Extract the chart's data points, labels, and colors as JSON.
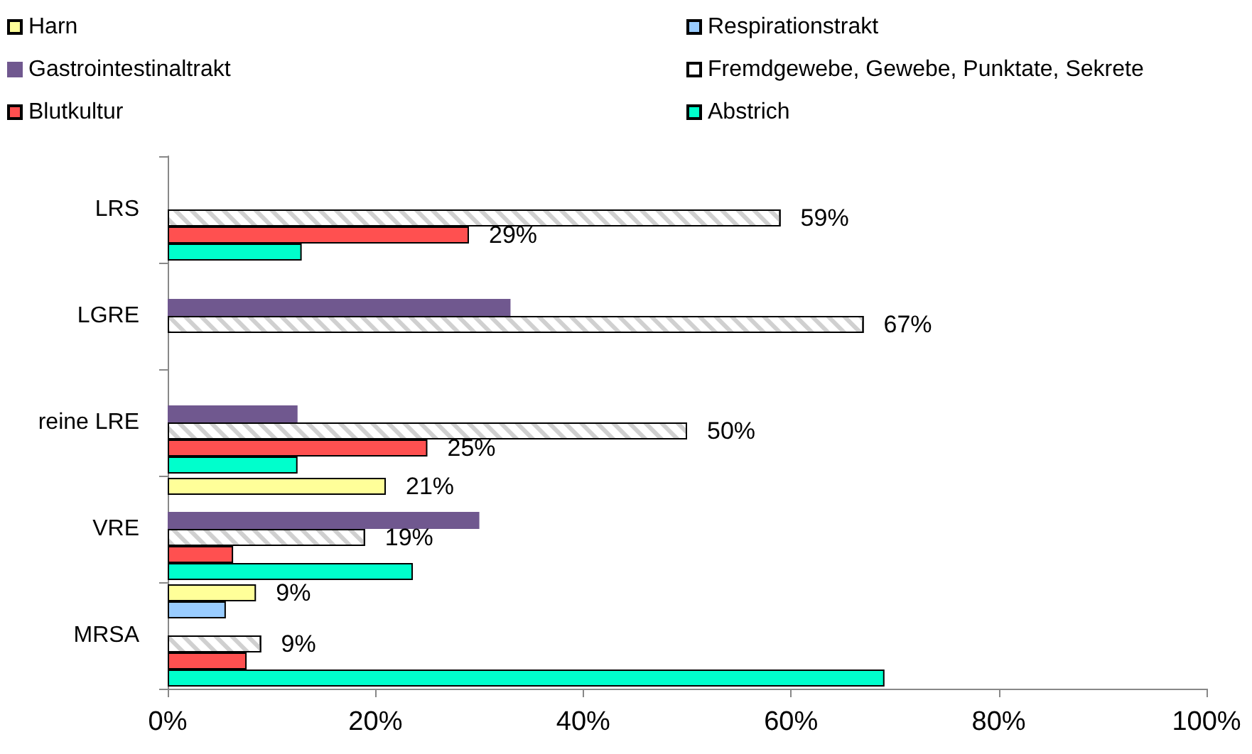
{
  "chart_data": {
    "type": "bar",
    "orientation": "horizontal",
    "categories": [
      "LRS",
      "LGRE",
      "reine LRE",
      "VRE",
      "MRSA"
    ],
    "series": [
      {
        "name": "Harn",
        "color": "#ffff99",
        "values": [
          null,
          null,
          null,
          21,
          8.5
        ],
        "value_labels": [
          null,
          null,
          null,
          "21%",
          "9%"
        ]
      },
      {
        "name": "Respirationstrakt",
        "color": "#99ccff",
        "values": [
          null,
          null,
          null,
          null,
          5.6
        ],
        "value_labels": [
          null,
          null,
          null,
          null,
          null
        ]
      },
      {
        "name": "Gastrointestinaltrakt",
        "color": "#70588f",
        "values": [
          null,
          33,
          12.5,
          30,
          null
        ],
        "value_labels": [
          null,
          null,
          null,
          null,
          null
        ]
      },
      {
        "name": "Fremdgewebe, Gewebe, Punktate, Sekrete",
        "color": "#ffffff",
        "values": [
          59,
          67,
          50,
          19,
          9
        ],
        "value_labels": [
          "59%",
          "67%",
          "50%",
          "19%",
          "9%"
        ]
      },
      {
        "name": "Blutkultur",
        "color": "#ff5050",
        "values": [
          29,
          null,
          25,
          6.3,
          7.6
        ],
        "value_labels": [
          "29%",
          null,
          "25%",
          null,
          null
        ]
      },
      {
        "name": "Abstrich",
        "color": "#00ffcc",
        "values": [
          12.9,
          null,
          12.5,
          23.6,
          69
        ],
        "value_labels": [
          null,
          null,
          null,
          null,
          null
        ]
      }
    ],
    "xlim": [
      0,
      100
    ],
    "xticks": [
      {
        "value": 0,
        "label": "0%"
      },
      {
        "value": 20,
        "label": "20%"
      },
      {
        "value": 40,
        "label": "40%"
      },
      {
        "value": 60,
        "label": "60%"
      },
      {
        "value": 80,
        "label": "80%"
      },
      {
        "value": 100,
        "label": "100%"
      }
    ],
    "legend": "top",
    "grid": false
  }
}
